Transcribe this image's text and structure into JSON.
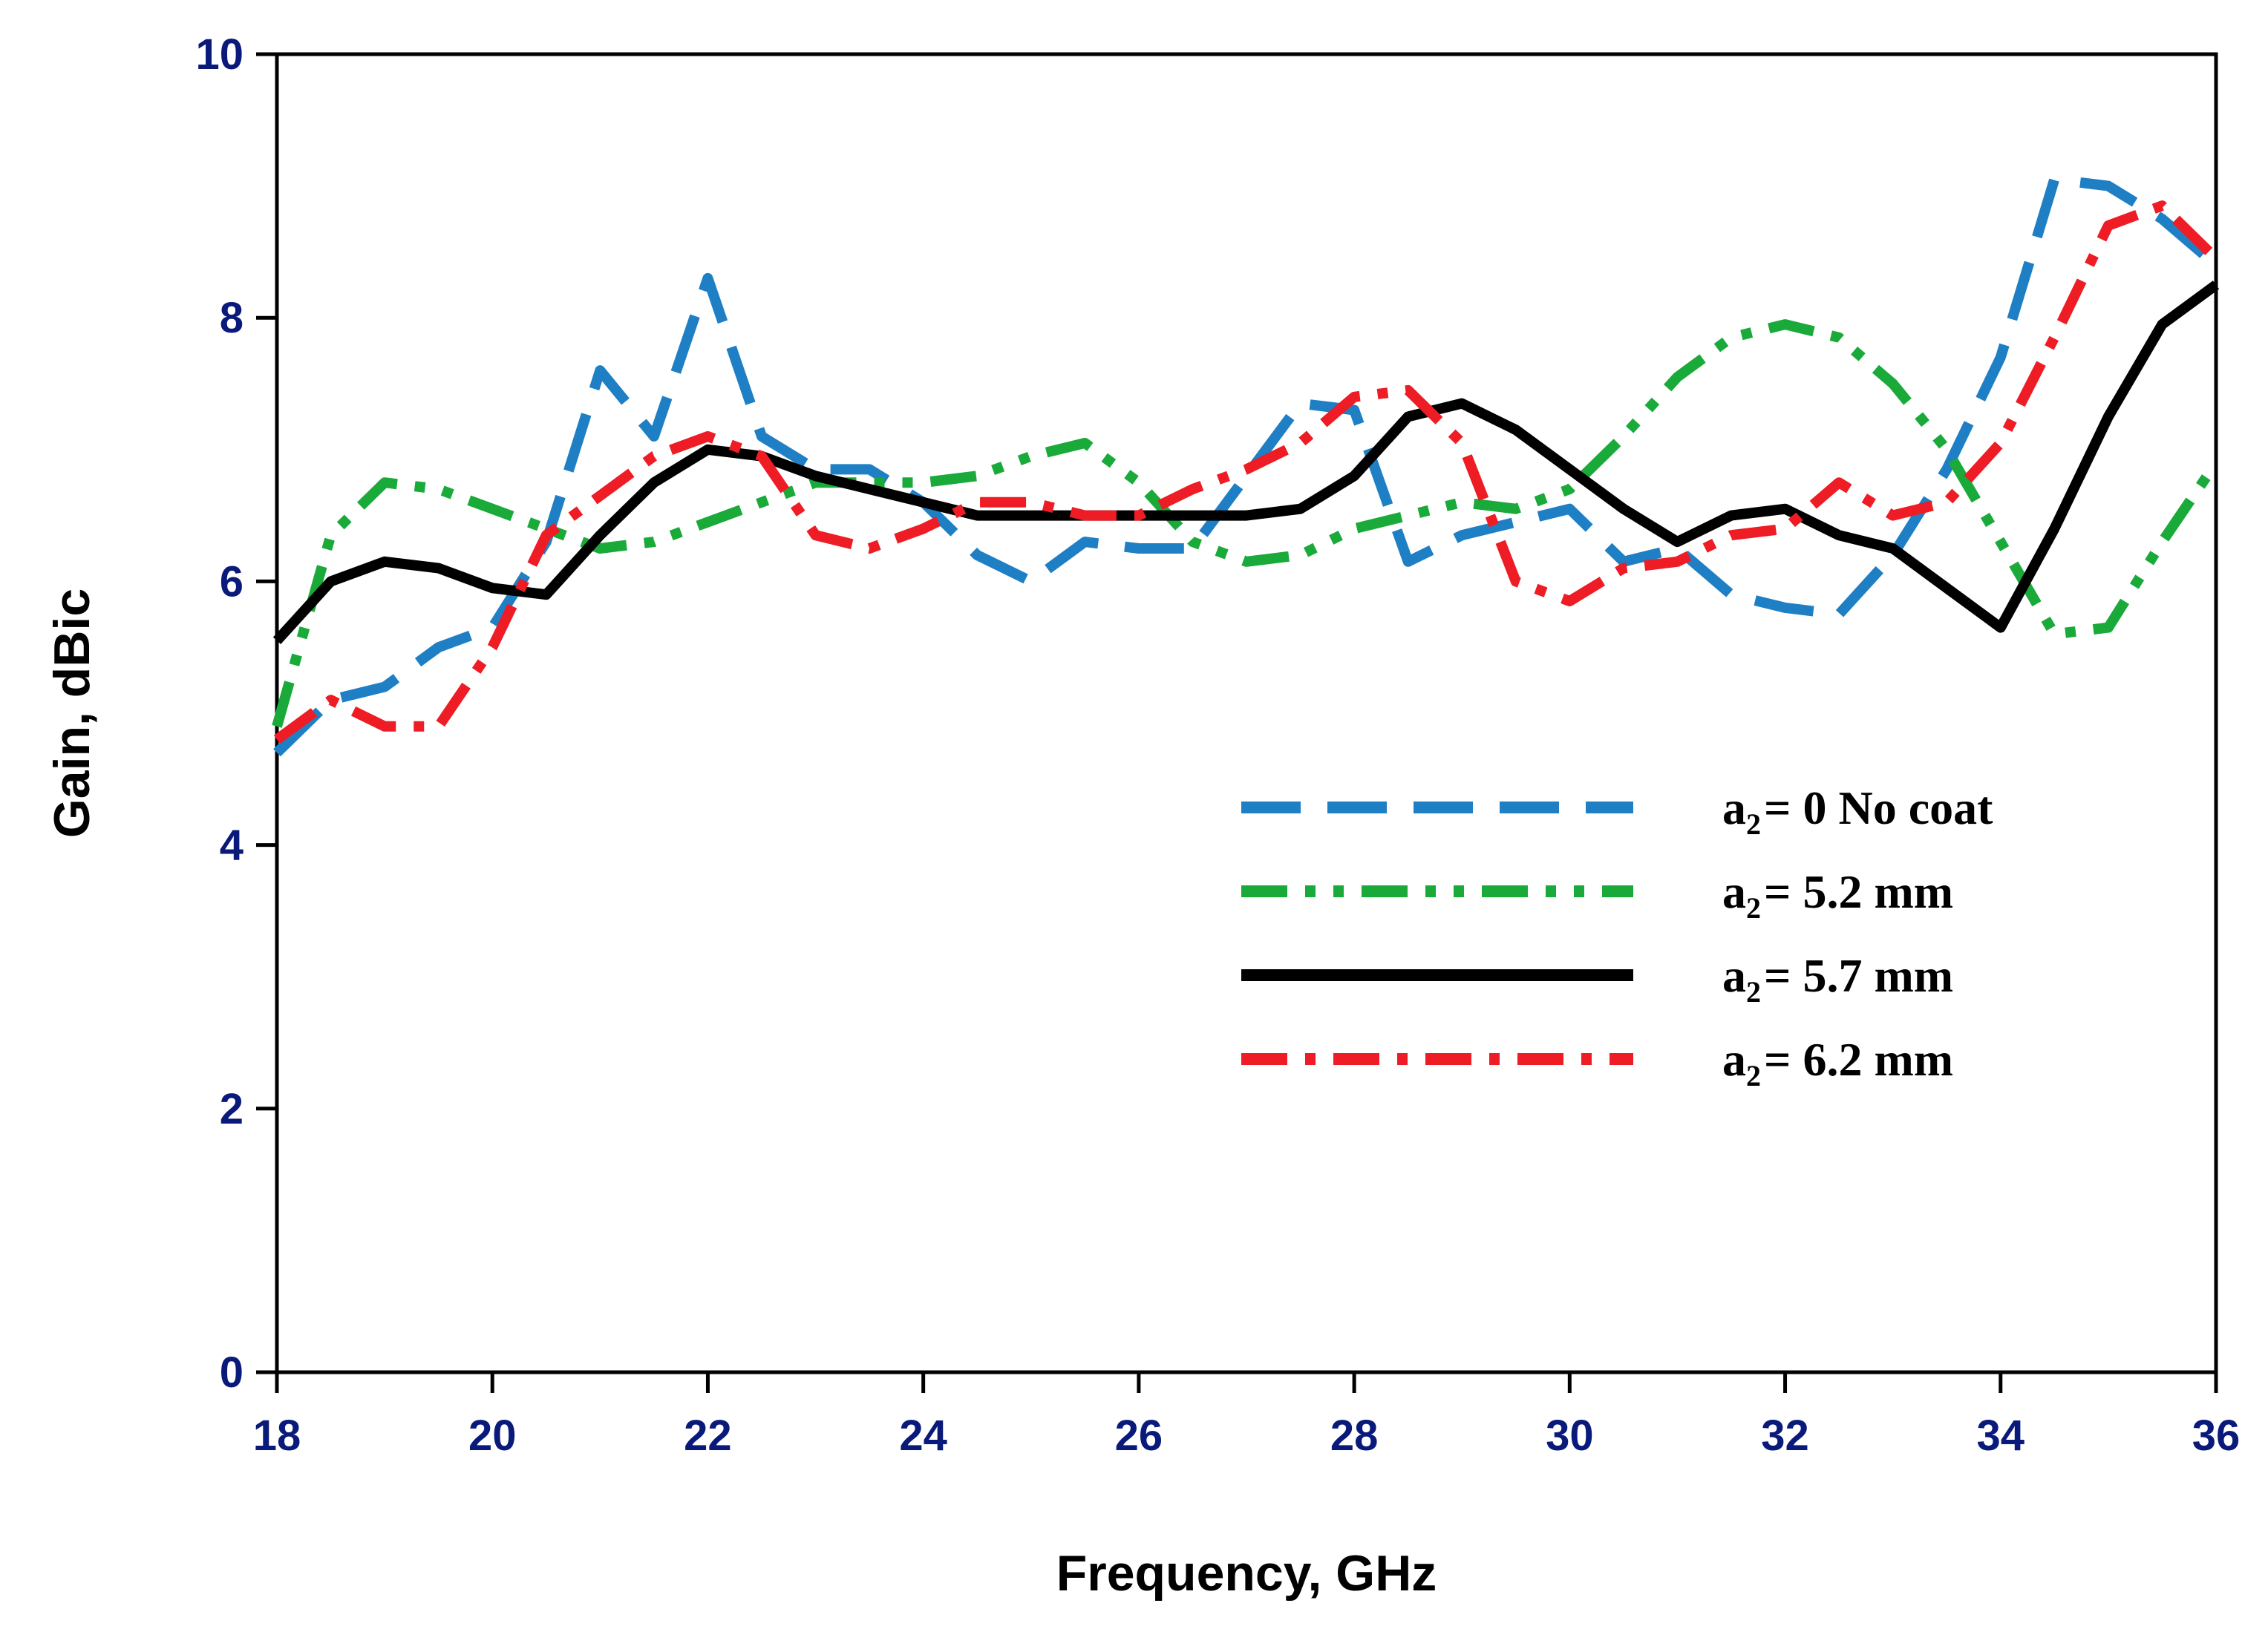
{
  "chart_data": {
    "type": "line",
    "title": "",
    "xlabel": "Frequency, GHz",
    "ylabel": "Gain, dBic",
    "xlim": [
      18,
      36
    ],
    "ylim": [
      0,
      10
    ],
    "xticks": [
      18,
      20,
      22,
      24,
      26,
      28,
      30,
      32,
      34,
      36
    ],
    "yticks": [
      0,
      2,
      4,
      6,
      8,
      10
    ],
    "tick_color": "#0a1a7a",
    "grid": false,
    "legend_position": "center-right",
    "series": [
      {
        "name": "No coat",
        "legend_prefix": "a",
        "legend_sub": "2",
        "legend_rest": "= 0 No coat",
        "color": "#1f7fc4",
        "dash": "dash",
        "x": [
          18,
          18.5,
          19,
          19.5,
          20,
          20.5,
          21,
          21.5,
          22,
          22.5,
          23,
          23.5,
          24,
          24.5,
          25,
          25.5,
          26,
          26.5,
          27,
          27.5,
          28,
          28.5,
          29,
          29.5,
          30,
          30.5,
          31,
          31.5,
          32,
          32.5,
          33,
          33.5,
          34,
          34.5,
          35,
          35.5,
          36
        ],
        "y": [
          4.7,
          5.1,
          5.2,
          5.5,
          5.65,
          6.3,
          7.6,
          7.1,
          8.3,
          7.1,
          6.85,
          6.85,
          6.6,
          6.2,
          6.0,
          6.3,
          6.25,
          6.25,
          6.8,
          7.35,
          7.3,
          6.15,
          6.35,
          6.45,
          6.55,
          6.15,
          6.25,
          5.9,
          5.8,
          5.75,
          6.2,
          6.85,
          7.7,
          9.05,
          9.0,
          8.75,
          8.4
        ]
      },
      {
        "name": "5.2 mm",
        "legend_prefix": "a",
        "legend_sub": "2",
        "legend_rest": "= 5.2 mm",
        "color": "#1aaa3a",
        "dash": "dash-dot-dot",
        "x": [
          18,
          18.5,
          19,
          19.5,
          20,
          20.5,
          21,
          21.5,
          22,
          22.5,
          23,
          23.5,
          24,
          24.5,
          25,
          25.5,
          26,
          26.5,
          27,
          27.5,
          28,
          28.5,
          29,
          29.5,
          30,
          30.5,
          31,
          31.5,
          32,
          32.5,
          33,
          33.5,
          34,
          34.5,
          35,
          35.5,
          36
        ],
        "y": [
          4.9,
          6.35,
          6.75,
          6.7,
          6.55,
          6.4,
          6.25,
          6.3,
          6.45,
          6.6,
          6.75,
          6.75,
          6.75,
          6.8,
          6.95,
          7.05,
          6.75,
          6.3,
          6.15,
          6.2,
          6.4,
          6.5,
          6.6,
          6.55,
          6.7,
          7.1,
          7.55,
          7.85,
          7.95,
          7.85,
          7.5,
          7.0,
          6.3,
          5.6,
          5.65,
          6.3,
          6.9
        ]
      },
      {
        "name": "5.7 mm",
        "legend_prefix": "a",
        "legend_sub": "2",
        "legend_rest": "= 5.7 mm",
        "color": "#000000",
        "dash": "solid",
        "x": [
          18,
          18.5,
          19,
          19.5,
          20,
          20.5,
          21,
          21.5,
          22,
          22.5,
          23,
          23.5,
          24,
          24.5,
          25,
          25.5,
          26,
          26.5,
          27,
          27.5,
          28,
          28.5,
          29,
          29.5,
          30,
          30.5,
          31,
          31.5,
          32,
          32.5,
          33,
          33.5,
          34,
          34.5,
          35,
          35.5,
          36
        ],
        "y": [
          5.55,
          6.0,
          6.15,
          6.1,
          5.95,
          5.9,
          6.35,
          6.75,
          7.0,
          6.95,
          6.8,
          6.7,
          6.6,
          6.5,
          6.5,
          6.5,
          6.5,
          6.5,
          6.5,
          6.55,
          6.8,
          7.25,
          7.35,
          7.15,
          6.85,
          6.55,
          6.3,
          6.5,
          6.55,
          6.35,
          6.25,
          5.95,
          5.65,
          6.4,
          7.25,
          7.95,
          8.25
        ]
      },
      {
        "name": "6.2 mm",
        "legend_prefix": "a",
        "legend_sub": "2",
        "legend_rest": "= 6.2 mm",
        "color": "#ee1c24",
        "dash": "dash-dot",
        "x": [
          18,
          18.5,
          19,
          19.5,
          20,
          20.5,
          21,
          21.5,
          22,
          22.5,
          23,
          23.5,
          24,
          24.5,
          25,
          25.5,
          26,
          26.5,
          27,
          27.5,
          28,
          28.5,
          29,
          29.5,
          30,
          30.5,
          31,
          31.5,
          32,
          32.5,
          33,
          33.5,
          34,
          34.5,
          35,
          35.5,
          36
        ],
        "y": [
          4.8,
          5.1,
          4.9,
          4.9,
          5.5,
          6.35,
          6.65,
          6.95,
          7.1,
          6.95,
          6.35,
          6.25,
          6.4,
          6.6,
          6.6,
          6.5,
          6.5,
          6.7,
          6.85,
          7.05,
          7.4,
          7.45,
          7.05,
          6.0,
          5.85,
          6.1,
          6.15,
          6.35,
          6.4,
          6.75,
          6.5,
          6.6,
          7.05,
          7.85,
          8.7,
          8.85,
          8.45
        ]
      }
    ]
  }
}
